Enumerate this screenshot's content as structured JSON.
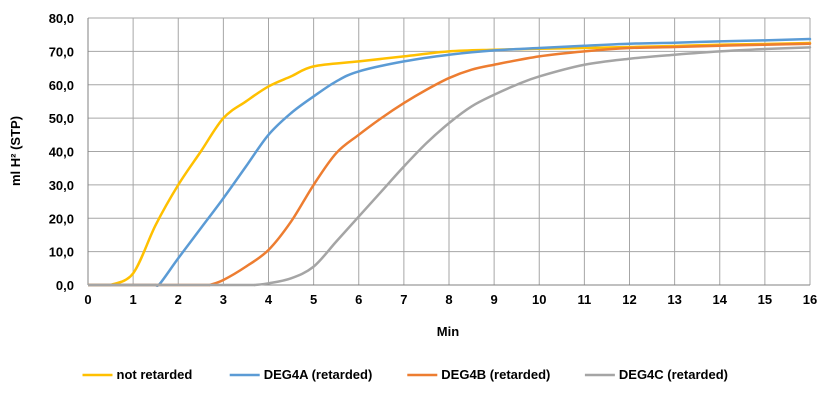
{
  "chart_data": {
    "type": "line",
    "title": "",
    "xlabel": "Min",
    "ylabel": "ml H² (STP)",
    "xlim": [
      0,
      16
    ],
    "ylim": [
      0,
      80
    ],
    "xticks": [
      0,
      1,
      2,
      3,
      4,
      5,
      6,
      7,
      8,
      9,
      10,
      11,
      12,
      13,
      14,
      15,
      16
    ],
    "yticks": [
      0,
      10,
      20,
      30,
      40,
      50,
      60,
      70,
      80
    ],
    "xtick_labels": [
      "0",
      "1",
      "2",
      "3",
      "4",
      "5",
      "6",
      "7",
      "8",
      "9",
      "10",
      "11",
      "12",
      "13",
      "14",
      "15",
      "16"
    ],
    "ytick_labels": [
      "0,0",
      "10,0",
      "20,0",
      "30,0",
      "40,0",
      "50,0",
      "60,0",
      "70,0",
      "80,0"
    ],
    "grid": true,
    "legend_position": "bottom",
    "series": [
      {
        "name": "not retarded",
        "color": "#FFC000",
        "x": [
          0.5,
          1,
          1.5,
          2,
          2.5,
          3,
          3.5,
          4,
          4.5,
          5,
          6,
          7,
          8,
          9,
          10,
          11,
          12,
          13,
          14,
          15,
          16
        ],
        "y": [
          0,
          3.5,
          18,
          30,
          40,
          50,
          55,
          59.5,
          62.5,
          65.5,
          67,
          68.5,
          70,
          70.5,
          70.8,
          71,
          71.3,
          71.6,
          72,
          72.2,
          72.5
        ]
      },
      {
        "name": "DEG4A (retarded)",
        "color": "#5B9BD5",
        "x": [
          1.5,
          1.6,
          2,
          2.5,
          3,
          3.5,
          4,
          4.5,
          5,
          5.5,
          6,
          7,
          8,
          9,
          10,
          11,
          12,
          13,
          14,
          15,
          16
        ],
        "y": [
          0,
          0.5,
          8,
          17,
          26,
          35.5,
          45,
          51.5,
          56.5,
          61,
          64,
          67,
          69,
          70.3,
          71,
          71.7,
          72.3,
          72.6,
          73,
          73.3,
          73.7
        ]
      },
      {
        "name": "DEG4B (retarded)",
        "color": "#ED7D31",
        "x": [
          2.7,
          3,
          3.5,
          4,
          4.5,
          5,
          5.5,
          6,
          6.5,
          7,
          7.5,
          8,
          8.5,
          9,
          10,
          11,
          12,
          13,
          14,
          15,
          16
        ],
        "y": [
          0,
          1.5,
          5.5,
          10.5,
          19,
          30,
          39.5,
          45,
          50,
          54.5,
          58.5,
          62,
          64.5,
          66,
          68.5,
          70,
          71,
          71.3,
          71.7,
          72,
          72.3
        ]
      },
      {
        "name": "DEG4C (retarded)",
        "color": "#A5A5A5",
        "x": [
          3.7,
          4,
          4.5,
          5,
          5.5,
          6,
          6.5,
          7,
          7.5,
          8,
          8.5,
          9,
          9.5,
          10,
          11,
          12,
          13,
          14,
          15,
          16
        ],
        "y": [
          0,
          0.5,
          2,
          5.5,
          13,
          20.5,
          28,
          35.5,
          42.5,
          48.5,
          53.5,
          57,
          60,
          62.5,
          66,
          67.8,
          69,
          70,
          70.7,
          71.2
        ]
      }
    ]
  }
}
